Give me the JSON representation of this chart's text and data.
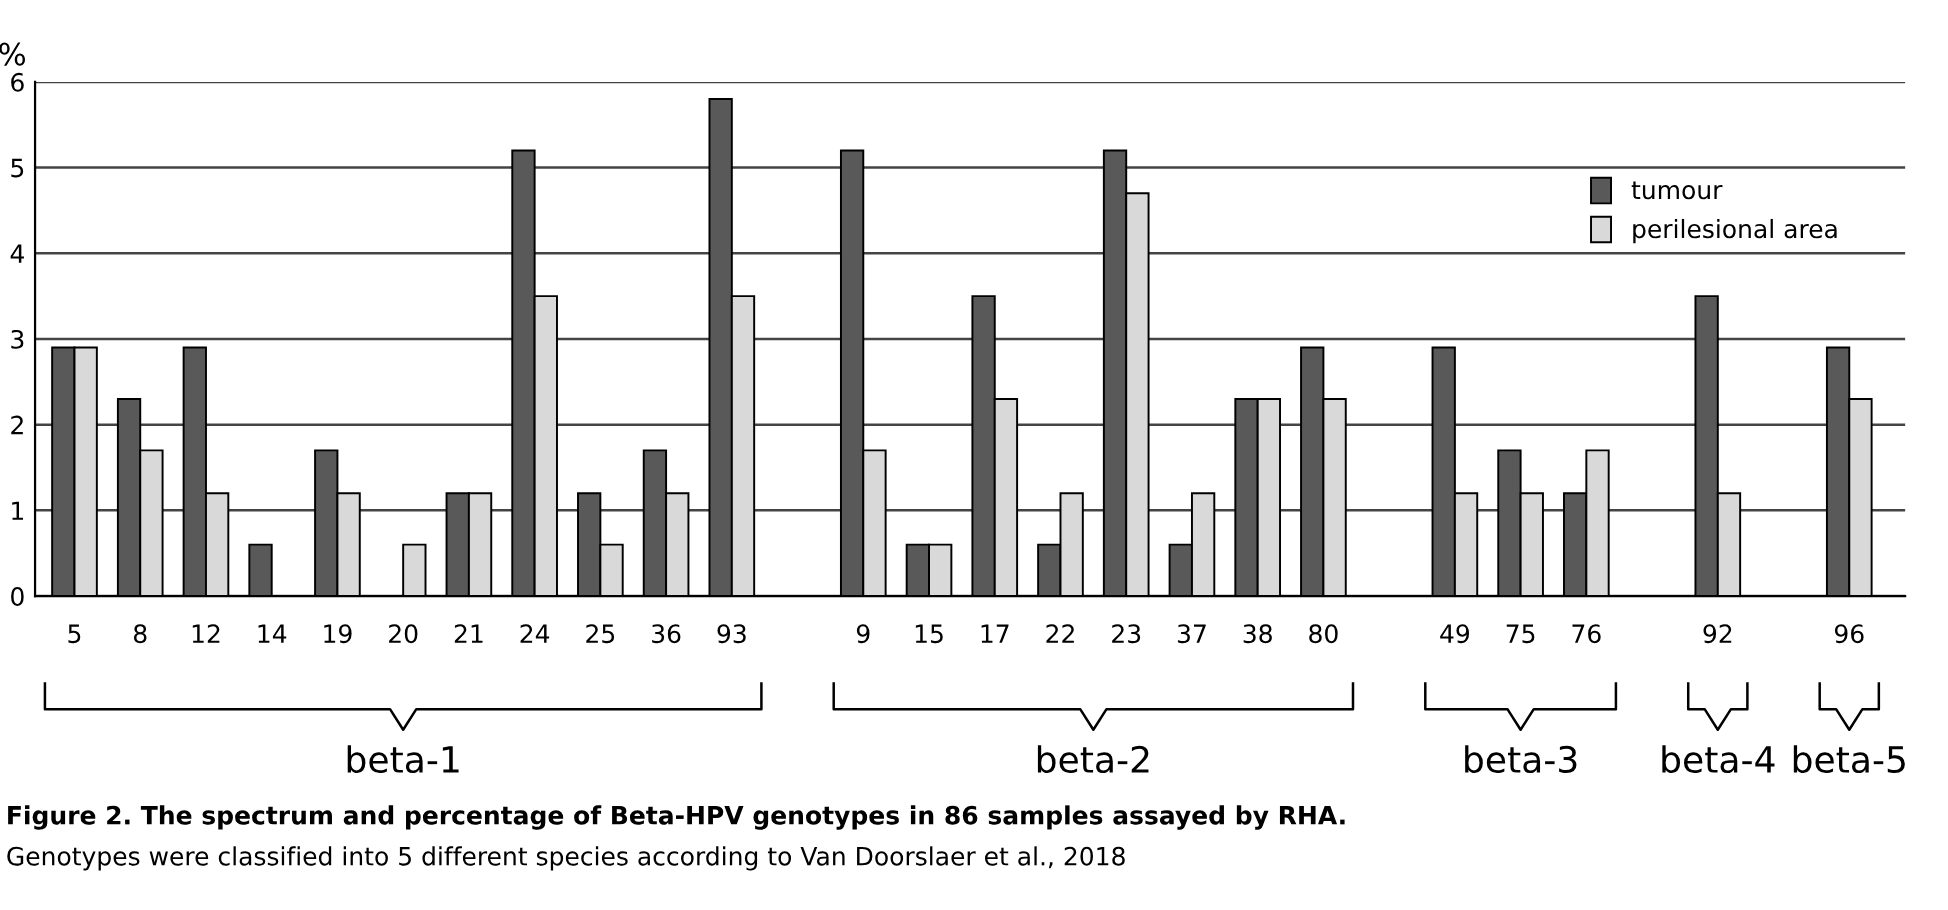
{
  "chart_data": {
    "type": "bar",
    "title": "Figure 2. The spectrum and percentage of Beta-HPV genotypes in 86 samples assayed by RHA.",
    "ylabel": "%",
    "categories": [
      "5",
      "8",
      "12",
      "14",
      "19",
      "20",
      "21",
      "24",
      "25",
      "36",
      "93",
      null,
      "9",
      "15",
      "17",
      "22",
      "23",
      "37",
      "38",
      "80",
      null,
      "49",
      "75",
      "76",
      null,
      "92",
      null,
      "96"
    ],
    "series": [
      {
        "name": "tumour",
        "color": "#595959",
        "values": [
          2.9,
          2.3,
          2.9,
          0.6,
          1.7,
          null,
          1.2,
          5.2,
          1.2,
          1.7,
          5.8,
          null,
          5.2,
          0.6,
          3.5,
          0.6,
          5.2,
          0.6,
          2.3,
          2.9,
          null,
          2.9,
          1.7,
          1.2,
          null,
          3.5,
          null,
          2.9
        ]
      },
      {
        "name": "perilesional area",
        "color": "#d9d9d9",
        "values": [
          2.9,
          1.7,
          1.2,
          null,
          1.2,
          0.6,
          1.2,
          3.5,
          0.6,
          1.2,
          3.5,
          null,
          1.7,
          0.6,
          2.3,
          1.2,
          4.7,
          1.2,
          2.3,
          2.3,
          null,
          1.2,
          1.2,
          1.7,
          null,
          1.2,
          null,
          2.3
        ]
      }
    ],
    "ylim": [
      0,
      6
    ],
    "yticks": [
      0,
      1,
      2,
      3,
      4,
      5,
      6
    ],
    "grid": "y",
    "legend": "top right",
    "annotations": [
      "beta-1",
      "beta-2",
      "beta-3",
      "beta-4",
      "beta-5",
      "Genotypes were classified into 5 different species according to Van Doorslaer et al., 2018"
    ]
  }
}
